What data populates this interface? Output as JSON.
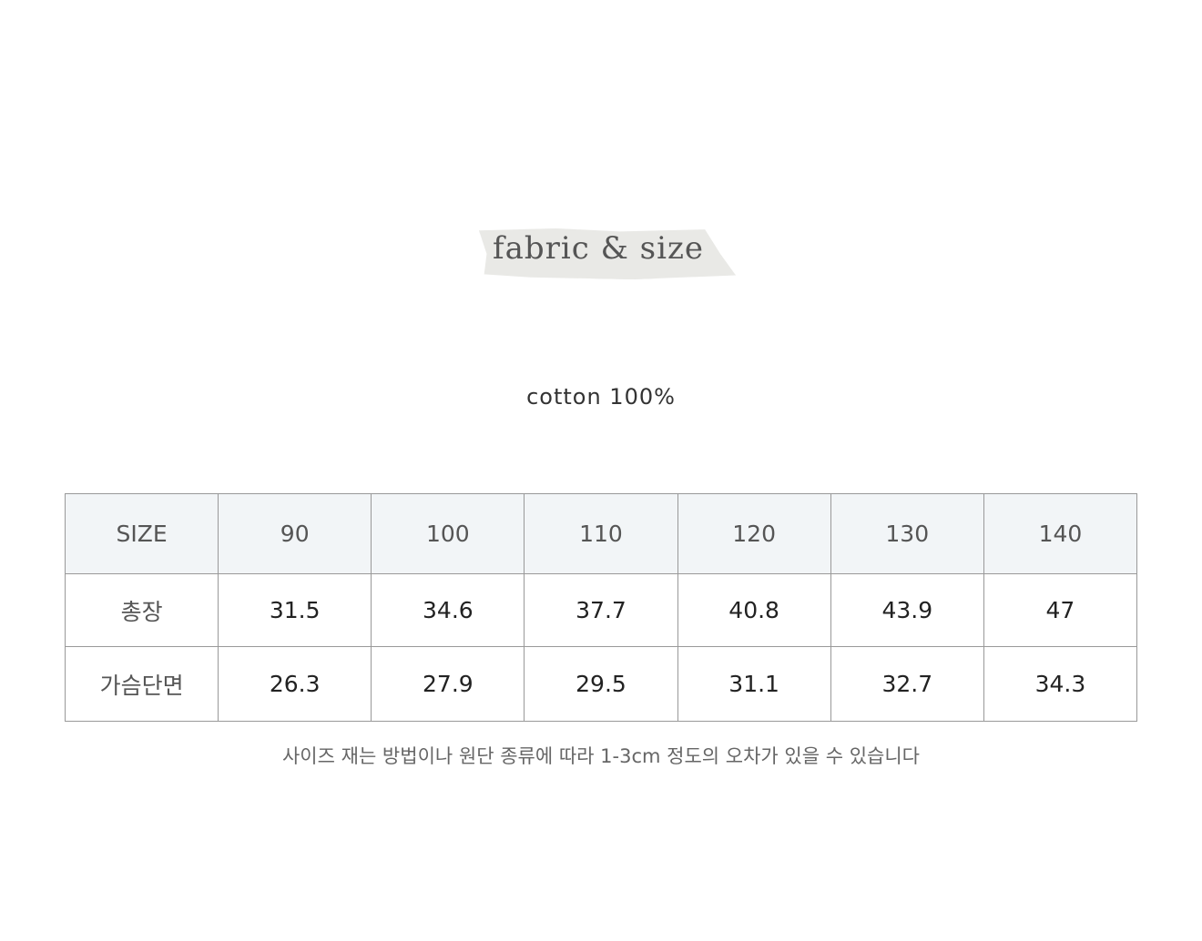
{
  "title": "fabric & size",
  "fabric": "cotton 100%",
  "table": {
    "header": [
      "SIZE",
      "90",
      "100",
      "110",
      "120",
      "130",
      "140"
    ],
    "rows": [
      [
        "총장",
        "31.5",
        "34.6",
        "37.7",
        "40.8",
        "43.9",
        "47"
      ],
      [
        "가슴단면",
        "26.3",
        "27.9",
        "29.5",
        "31.1",
        "32.7",
        "34.3"
      ]
    ]
  },
  "note": "사이즈 재는 방법이나 원단 종류에 따라 1-3cm 정도의 오차가 있을 수 있습니다"
}
